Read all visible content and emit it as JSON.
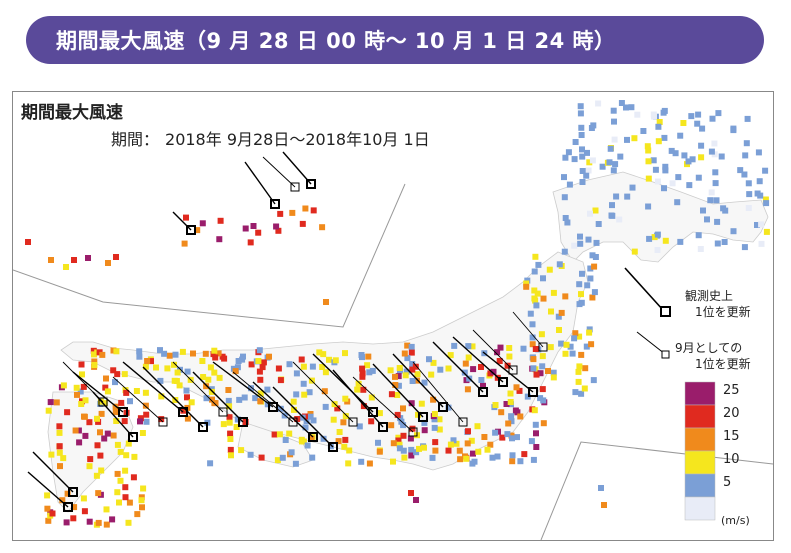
{
  "header": {
    "title": "期間最大風速（9 月 28 日 00 時～ 10 月 1 日 24 時）"
  },
  "map": {
    "title": "期間最大風速",
    "period_label": "期間：",
    "period_value": "2018年 9月28日～2018年10月 1日"
  },
  "legend": {
    "record_alltime_line1": "観測史上",
    "record_alltime_line2": "1位を更新",
    "record_month_line1": "9月としての",
    "record_month_line2": "1位を更新",
    "scale": [
      {
        "label": "25",
        "color": "#9a1d6b"
      },
      {
        "label": "20",
        "color": "#e02a1f"
      },
      {
        "label": "15",
        "color": "#f08a1c"
      },
      {
        "label": "10",
        "color": "#f5e61e"
      },
      {
        "label": "5",
        "color": "#7b9fd6"
      },
      {
        "label": "",
        "color": "#e8ecf7"
      }
    ],
    "unit": "(m/s)"
  }
}
